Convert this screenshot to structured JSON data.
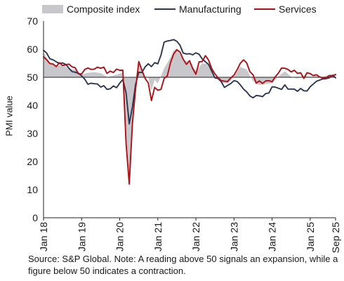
{
  "chart_data": {
    "type": "line",
    "ylabel": "PMI value",
    "ylim": [
      0,
      70
    ],
    "yticks": [
      0,
      10,
      20,
      30,
      40,
      50,
      60,
      70
    ],
    "reference_line": 50,
    "x_tick_labels": [
      "Jan 18",
      "Jan 19",
      "Jan 20",
      "Jan 21",
      "Jan 22",
      "Jan 23",
      "Jan 24",
      "Jan 25",
      "Sep 25"
    ],
    "legend_position": "top",
    "grid": false,
    "series": [
      {
        "name": "Composite index",
        "style": "area",
        "color": "#c8c8cc",
        "points": [
          [
            "2018-01",
            58.8
          ],
          [
            "2018-03",
            55.2
          ],
          [
            "2018-05",
            54.2
          ],
          [
            "2018-07",
            54.3
          ],
          [
            "2018-09",
            53.0
          ],
          [
            "2018-11",
            52.7
          ],
          [
            "2019-01",
            51.0
          ],
          [
            "2019-03",
            51.6
          ],
          [
            "2019-05",
            51.8
          ],
          [
            "2019-07",
            51.5
          ],
          [
            "2019-09",
            50.1
          ],
          [
            "2019-11",
            50.6
          ],
          [
            "2020-01",
            51.3
          ],
          [
            "2020-02",
            51.6
          ],
          [
            "2020-03",
            29.7
          ],
          [
            "2020-04",
            13.6
          ],
          [
            "2020-05",
            31.9
          ],
          [
            "2020-06",
            48.5
          ],
          [
            "2020-07",
            54.9
          ],
          [
            "2020-08",
            51.9
          ],
          [
            "2020-09",
            50.4
          ],
          [
            "2020-10",
            50.0
          ],
          [
            "2020-11",
            45.3
          ],
          [
            "2020-12",
            49.1
          ],
          [
            "2021-01",
            47.8
          ],
          [
            "2021-03",
            53.2
          ],
          [
            "2021-05",
            57.1
          ],
          [
            "2021-06",
            59.5
          ],
          [
            "2021-07",
            60.2
          ],
          [
            "2021-09",
            56.2
          ],
          [
            "2021-11",
            55.4
          ],
          [
            "2022-01",
            52.3
          ],
          [
            "2022-03",
            54.9
          ],
          [
            "2022-05",
            54.8
          ],
          [
            "2022-07",
            49.9
          ],
          [
            "2022-09",
            48.1
          ],
          [
            "2022-11",
            47.8
          ],
          [
            "2023-01",
            50.3
          ],
          [
            "2023-03",
            53.7
          ],
          [
            "2023-05",
            52.8
          ],
          [
            "2023-07",
            48.6
          ],
          [
            "2023-09",
            47.2
          ],
          [
            "2023-11",
            47.6
          ],
          [
            "2024-01",
            47.9
          ],
          [
            "2024-03",
            50.3
          ],
          [
            "2024-05",
            52.2
          ],
          [
            "2024-07",
            50.2
          ],
          [
            "2024-09",
            49.6
          ],
          [
            "2024-11",
            50.5
          ],
          [
            "2025-01",
            50.2
          ],
          [
            "2025-03",
            50.4
          ],
          [
            "2025-05",
            50.2
          ],
          [
            "2025-07",
            50.9
          ],
          [
            "2025-09",
            51.2
          ]
        ]
      },
      {
        "name": "Manufacturing",
        "style": "line",
        "color": "#2b3752",
        "points": [
          [
            "2018-01",
            59.6
          ],
          [
            "2018-02",
            58.6
          ],
          [
            "2018-03",
            56.6
          ],
          [
            "2018-04",
            56.2
          ],
          [
            "2018-05",
            55.5
          ],
          [
            "2018-06",
            54.9
          ],
          [
            "2018-07",
            55.1
          ],
          [
            "2018-08",
            54.6
          ],
          [
            "2018-09",
            53.2
          ],
          [
            "2018-10",
            52.0
          ],
          [
            "2018-11",
            51.8
          ],
          [
            "2018-12",
            51.4
          ],
          [
            "2019-01",
            50.5
          ],
          [
            "2019-02",
            49.3
          ],
          [
            "2019-03",
            47.5
          ],
          [
            "2019-04",
            47.9
          ],
          [
            "2019-05",
            47.7
          ],
          [
            "2019-06",
            47.6
          ],
          [
            "2019-07",
            46.5
          ],
          [
            "2019-08",
            47.0
          ],
          [
            "2019-09",
            45.7
          ],
          [
            "2019-10",
            45.9
          ],
          [
            "2019-11",
            46.9
          ],
          [
            "2019-12",
            46.3
          ],
          [
            "2020-01",
            47.9
          ],
          [
            "2020-02",
            49.2
          ],
          [
            "2020-03",
            44.5
          ],
          [
            "2020-04",
            33.4
          ],
          [
            "2020-05",
            39.4
          ],
          [
            "2020-06",
            47.4
          ],
          [
            "2020-07",
            51.8
          ],
          [
            "2020-08",
            51.7
          ],
          [
            "2020-09",
            53.7
          ],
          [
            "2020-10",
            54.8
          ],
          [
            "2020-11",
            53.8
          ],
          [
            "2020-12",
            55.2
          ],
          [
            "2021-01",
            54.8
          ],
          [
            "2021-02",
            57.9
          ],
          [
            "2021-03",
            62.5
          ],
          [
            "2021-04",
            62.9
          ],
          [
            "2021-05",
            63.1
          ],
          [
            "2021-06",
            63.4
          ],
          [
            "2021-07",
            62.8
          ],
          [
            "2021-08",
            61.4
          ],
          [
            "2021-09",
            58.6
          ],
          [
            "2021-10",
            58.3
          ],
          [
            "2021-11",
            58.4
          ],
          [
            "2021-12",
            58.0
          ],
          [
            "2022-01",
            58.7
          ],
          [
            "2022-02",
            58.2
          ],
          [
            "2022-03",
            56.5
          ],
          [
            "2022-04",
            55.5
          ],
          [
            "2022-05",
            54.6
          ],
          [
            "2022-06",
            52.1
          ],
          [
            "2022-07",
            49.8
          ],
          [
            "2022-08",
            49.6
          ],
          [
            "2022-09",
            48.4
          ],
          [
            "2022-10",
            46.4
          ],
          [
            "2022-11",
            47.1
          ],
          [
            "2022-12",
            47.8
          ],
          [
            "2023-01",
            48.8
          ],
          [
            "2023-02",
            48.5
          ],
          [
            "2023-03",
            47.3
          ],
          [
            "2023-04",
            45.8
          ],
          [
            "2023-05",
            44.8
          ],
          [
            "2023-06",
            43.4
          ],
          [
            "2023-07",
            42.7
          ],
          [
            "2023-08",
            43.5
          ],
          [
            "2023-09",
            43.4
          ],
          [
            "2023-10",
            43.1
          ],
          [
            "2023-11",
            44.2
          ],
          [
            "2023-12",
            44.4
          ],
          [
            "2024-01",
            46.6
          ],
          [
            "2024-02",
            46.5
          ],
          [
            "2024-03",
            46.1
          ],
          [
            "2024-04",
            45.7
          ],
          [
            "2024-05",
            47.3
          ],
          [
            "2024-06",
            45.8
          ],
          [
            "2024-07",
            45.8
          ],
          [
            "2024-08",
            45.8
          ],
          [
            "2024-09",
            45.0
          ],
          [
            "2024-10",
            46.0
          ],
          [
            "2024-11",
            45.2
          ],
          [
            "2024-12",
            45.1
          ],
          [
            "2025-01",
            46.6
          ],
          [
            "2025-02",
            47.6
          ],
          [
            "2025-03",
            48.6
          ],
          [
            "2025-04",
            49.0
          ],
          [
            "2025-05",
            49.4
          ],
          [
            "2025-06",
            49.5
          ],
          [
            "2025-07",
            49.8
          ],
          [
            "2025-08",
            50.7
          ],
          [
            "2025-09",
            49.8
          ]
        ]
      },
      {
        "name": "Services",
        "style": "line",
        "color": "#b00f14",
        "points": [
          [
            "2018-01",
            57.3
          ],
          [
            "2018-02",
            56.2
          ],
          [
            "2018-03",
            54.9
          ],
          [
            "2018-04",
            54.7
          ],
          [
            "2018-05",
            53.8
          ],
          [
            "2018-06",
            55.2
          ],
          [
            "2018-07",
            54.2
          ],
          [
            "2018-08",
            54.4
          ],
          [
            "2018-09",
            54.7
          ],
          [
            "2018-10",
            53.7
          ],
          [
            "2018-11",
            53.4
          ],
          [
            "2018-12",
            51.2
          ],
          [
            "2019-01",
            51.2
          ],
          [
            "2019-02",
            52.8
          ],
          [
            "2019-03",
            53.3
          ],
          [
            "2019-04",
            52.8
          ],
          [
            "2019-05",
            52.9
          ],
          [
            "2019-06",
            53.6
          ],
          [
            "2019-07",
            53.2
          ],
          [
            "2019-08",
            53.6
          ],
          [
            "2019-09",
            51.4
          ],
          [
            "2019-10",
            52.2
          ],
          [
            "2019-11",
            51.7
          ],
          [
            "2019-12",
            52.9
          ],
          [
            "2020-01",
            52.5
          ],
          [
            "2020-02",
            52.5
          ],
          [
            "2020-03",
            26.4
          ],
          [
            "2020-04",
            12.0
          ],
          [
            "2020-05",
            33.5
          ],
          [
            "2020-06",
            45.8
          ],
          [
            "2020-07",
            55.6
          ],
          [
            "2020-08",
            52.5
          ],
          [
            "2020-09",
            49.6
          ],
          [
            "2020-10",
            48.0
          ],
          [
            "2020-11",
            41.7
          ],
          [
            "2020-12",
            46.4
          ],
          [
            "2021-01",
            45.4
          ],
          [
            "2021-02",
            45.7
          ],
          [
            "2021-03",
            49.6
          ],
          [
            "2021-04",
            50.5
          ],
          [
            "2021-05",
            55.2
          ],
          [
            "2021-06",
            58.3
          ],
          [
            "2021-07",
            59.8
          ],
          [
            "2021-08",
            59.0
          ],
          [
            "2021-09",
            56.4
          ],
          [
            "2021-10",
            54.6
          ],
          [
            "2021-11",
            55.9
          ],
          [
            "2021-12",
            53.1
          ],
          [
            "2022-01",
            51.1
          ],
          [
            "2022-02",
            55.5
          ],
          [
            "2022-03",
            55.6
          ],
          [
            "2022-04",
            57.7
          ],
          [
            "2022-05",
            56.1
          ],
          [
            "2022-06",
            53.0
          ],
          [
            "2022-07",
            51.2
          ],
          [
            "2022-08",
            49.8
          ],
          [
            "2022-09",
            48.8
          ],
          [
            "2022-10",
            48.6
          ],
          [
            "2022-11",
            48.5
          ],
          [
            "2022-12",
            49.8
          ],
          [
            "2023-01",
            50.8
          ],
          [
            "2023-02",
            52.7
          ],
          [
            "2023-03",
            55.0
          ],
          [
            "2023-04",
            56.2
          ],
          [
            "2023-05",
            55.1
          ],
          [
            "2023-06",
            52.0
          ],
          [
            "2023-07",
            50.9
          ],
          [
            "2023-08",
            47.9
          ],
          [
            "2023-09",
            48.7
          ],
          [
            "2023-10",
            47.8
          ],
          [
            "2023-11",
            48.7
          ],
          [
            "2023-12",
            48.8
          ],
          [
            "2024-01",
            48.4
          ],
          [
            "2024-02",
            50.2
          ],
          [
            "2024-03",
            51.5
          ],
          [
            "2024-04",
            53.3
          ],
          [
            "2024-05",
            53.2
          ],
          [
            "2024-06",
            52.8
          ],
          [
            "2024-07",
            51.9
          ],
          [
            "2024-08",
            52.5
          ],
          [
            "2024-09",
            51.4
          ],
          [
            "2024-10",
            51.6
          ],
          [
            "2024-11",
            49.6
          ],
          [
            "2024-12",
            51.6
          ],
          [
            "2025-01",
            51.3
          ],
          [
            "2025-02",
            50.6
          ],
          [
            "2025-03",
            50.9
          ],
          [
            "2025-04",
            50.1
          ],
          [
            "2025-05",
            49.7
          ],
          [
            "2025-06",
            49.8
          ],
          [
            "2025-07",
            50.6
          ],
          [
            "2025-08",
            50.5
          ],
          [
            "2025-09",
            51.0
          ]
        ]
      }
    ]
  },
  "legend": {
    "composite": "Composite index",
    "manufacturing": "Manufacturing",
    "services": "Services"
  },
  "note": "Source: S&P Global. Note: A reading above 50 signals an expansion, while a figure below 50 indicates a contraction.",
  "colors": {
    "composite_fill": "#c8c8cc",
    "manufacturing": "#2b3752",
    "services": "#b00f14",
    "axis": "#222222",
    "reference": "#222222"
  }
}
